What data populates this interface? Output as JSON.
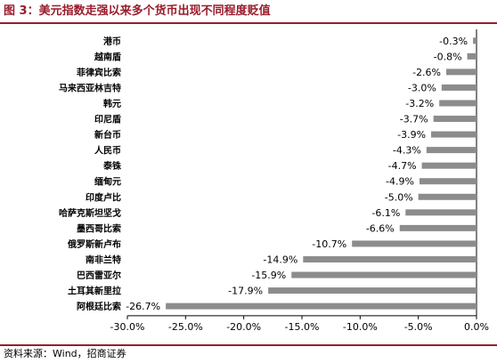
{
  "header": {
    "title": "图 3：美元指数走强以来多个货币出现不同程度贬值"
  },
  "footer": {
    "source": "资料来源：Wind，招商证券"
  },
  "colors": {
    "bar": "#8c8c8c",
    "title": "#9a1c2b",
    "rule": "#9a1c2b",
    "label_bg": "#ffffff"
  },
  "chart_data": {
    "type": "bar",
    "orientation": "horizontal",
    "title": "",
    "xlabel": "",
    "ylabel": "",
    "xlim": [
      -30.0,
      0.0
    ],
    "x_ticks": [
      -30.0,
      -25.0,
      -20.0,
      -15.0,
      -10.0,
      -5.0,
      0.0
    ],
    "x_tick_labels": [
      "-30.0%",
      "-25.0%",
      "-20.0%",
      "-15.0%",
      "-10.0%",
      "-5.0%",
      "0.0%"
    ],
    "grid": false,
    "legend": "none",
    "categories": [
      "港币",
      "越南盾",
      "菲律宾比索",
      "马来西亚林吉特",
      "韩元",
      "印尼盾",
      "新台币",
      "人民币",
      "泰铢",
      "缅甸元",
      "印度卢比",
      "哈萨克斯坦坚戈",
      "墨西哥比索",
      "俄罗斯新卢布",
      "南非兰特",
      "巴西雷亚尔",
      "土耳其新里拉",
      "阿根廷比索"
    ],
    "values": [
      -0.3,
      -0.8,
      -2.6,
      -3.0,
      -3.2,
      -3.7,
      -3.9,
      -4.3,
      -4.7,
      -4.9,
      -5.0,
      -6.1,
      -6.6,
      -10.7,
      -14.9,
      -15.9,
      -17.9,
      -26.7
    ],
    "data_labels": [
      "-0.3%",
      "-0.8%",
      "-2.6%",
      "-3.0%",
      "-3.2%",
      "-3.7%",
      "-3.9%",
      "-4.3%",
      "-4.7%",
      "-4.9%",
      "-5.0%",
      "-6.1%",
      "-6.6%",
      "-10.7%",
      "-14.9%",
      "-15.9%",
      "-17.9%",
      "-26.7%"
    ]
  }
}
